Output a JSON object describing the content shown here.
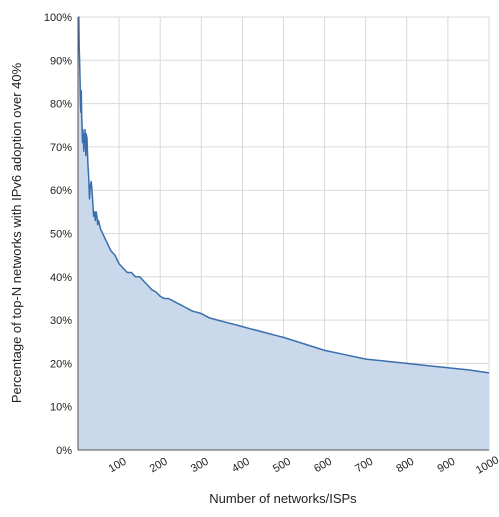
{
  "chart_data": {
    "type": "area",
    "title": "",
    "xlabel": "Number of networks/ISPs",
    "ylabel": "Percentage of top-N networks with IPv6 adoption over 40%",
    "xlim": [
      0,
      1000
    ],
    "ylim": [
      0,
      100
    ],
    "x_ticks": [
      100,
      200,
      300,
      400,
      500,
      600,
      700,
      800,
      900,
      1000
    ],
    "y_ticks": [
      0,
      10,
      20,
      30,
      40,
      50,
      60,
      70,
      80,
      90,
      100
    ],
    "y_tick_labels": [
      "0%",
      "10%",
      "20%",
      "30%",
      "40%",
      "50%",
      "60%",
      "70%",
      "80%",
      "90%",
      "100%"
    ],
    "grid": true,
    "legend": "none",
    "colors": {
      "line": "#3a6fad",
      "fill": "#c9d8ea",
      "grid": "#d9d9d9",
      "axis": "#555555"
    },
    "series": [
      {
        "x": [
          1,
          2,
          3,
          4,
          5,
          6,
          7,
          8,
          9,
          10,
          11,
          12,
          13,
          14,
          15,
          16,
          17,
          18,
          19,
          20,
          22,
          24,
          26,
          28,
          30,
          32,
          34,
          36,
          38,
          40,
          42,
          44,
          46,
          48,
          50,
          55,
          60,
          65,
          70,
          75,
          80,
          85,
          90,
          95,
          100,
          110,
          120,
          130,
          140,
          150,
          160,
          170,
          180,
          190,
          200,
          210,
          220,
          230,
          240,
          250,
          260,
          270,
          280,
          290,
          300,
          320,
          340,
          360,
          380,
          400,
          420,
          440,
          460,
          480,
          500,
          550,
          600,
          650,
          700,
          750,
          800,
          850,
          900,
          950,
          1000
        ],
        "y": [
          100,
          100,
          93,
          90,
          85,
          80,
          78,
          83,
          77,
          75,
          71,
          74,
          72,
          69,
          73,
          70,
          74,
          72,
          68,
          73,
          72,
          66,
          63,
          58,
          61,
          62,
          60,
          57,
          54,
          55,
          53,
          55,
          54,
          52,
          53,
          51,
          50,
          49,
          48,
          47,
          46,
          45.5,
          45,
          44,
          43,
          42,
          41,
          41,
          40,
          40,
          39,
          38,
          37,
          36.5,
          35.5,
          35,
          35,
          34.5,
          34,
          33.5,
          33,
          32.5,
          32,
          31.8,
          31.5,
          30.5,
          30,
          29.5,
          29,
          28.5,
          28,
          27.5,
          27,
          26.5,
          26,
          24.5,
          23,
          22,
          21,
          20.5,
          20,
          19.5,
          19,
          18.5,
          17.8
        ]
      }
    ]
  }
}
